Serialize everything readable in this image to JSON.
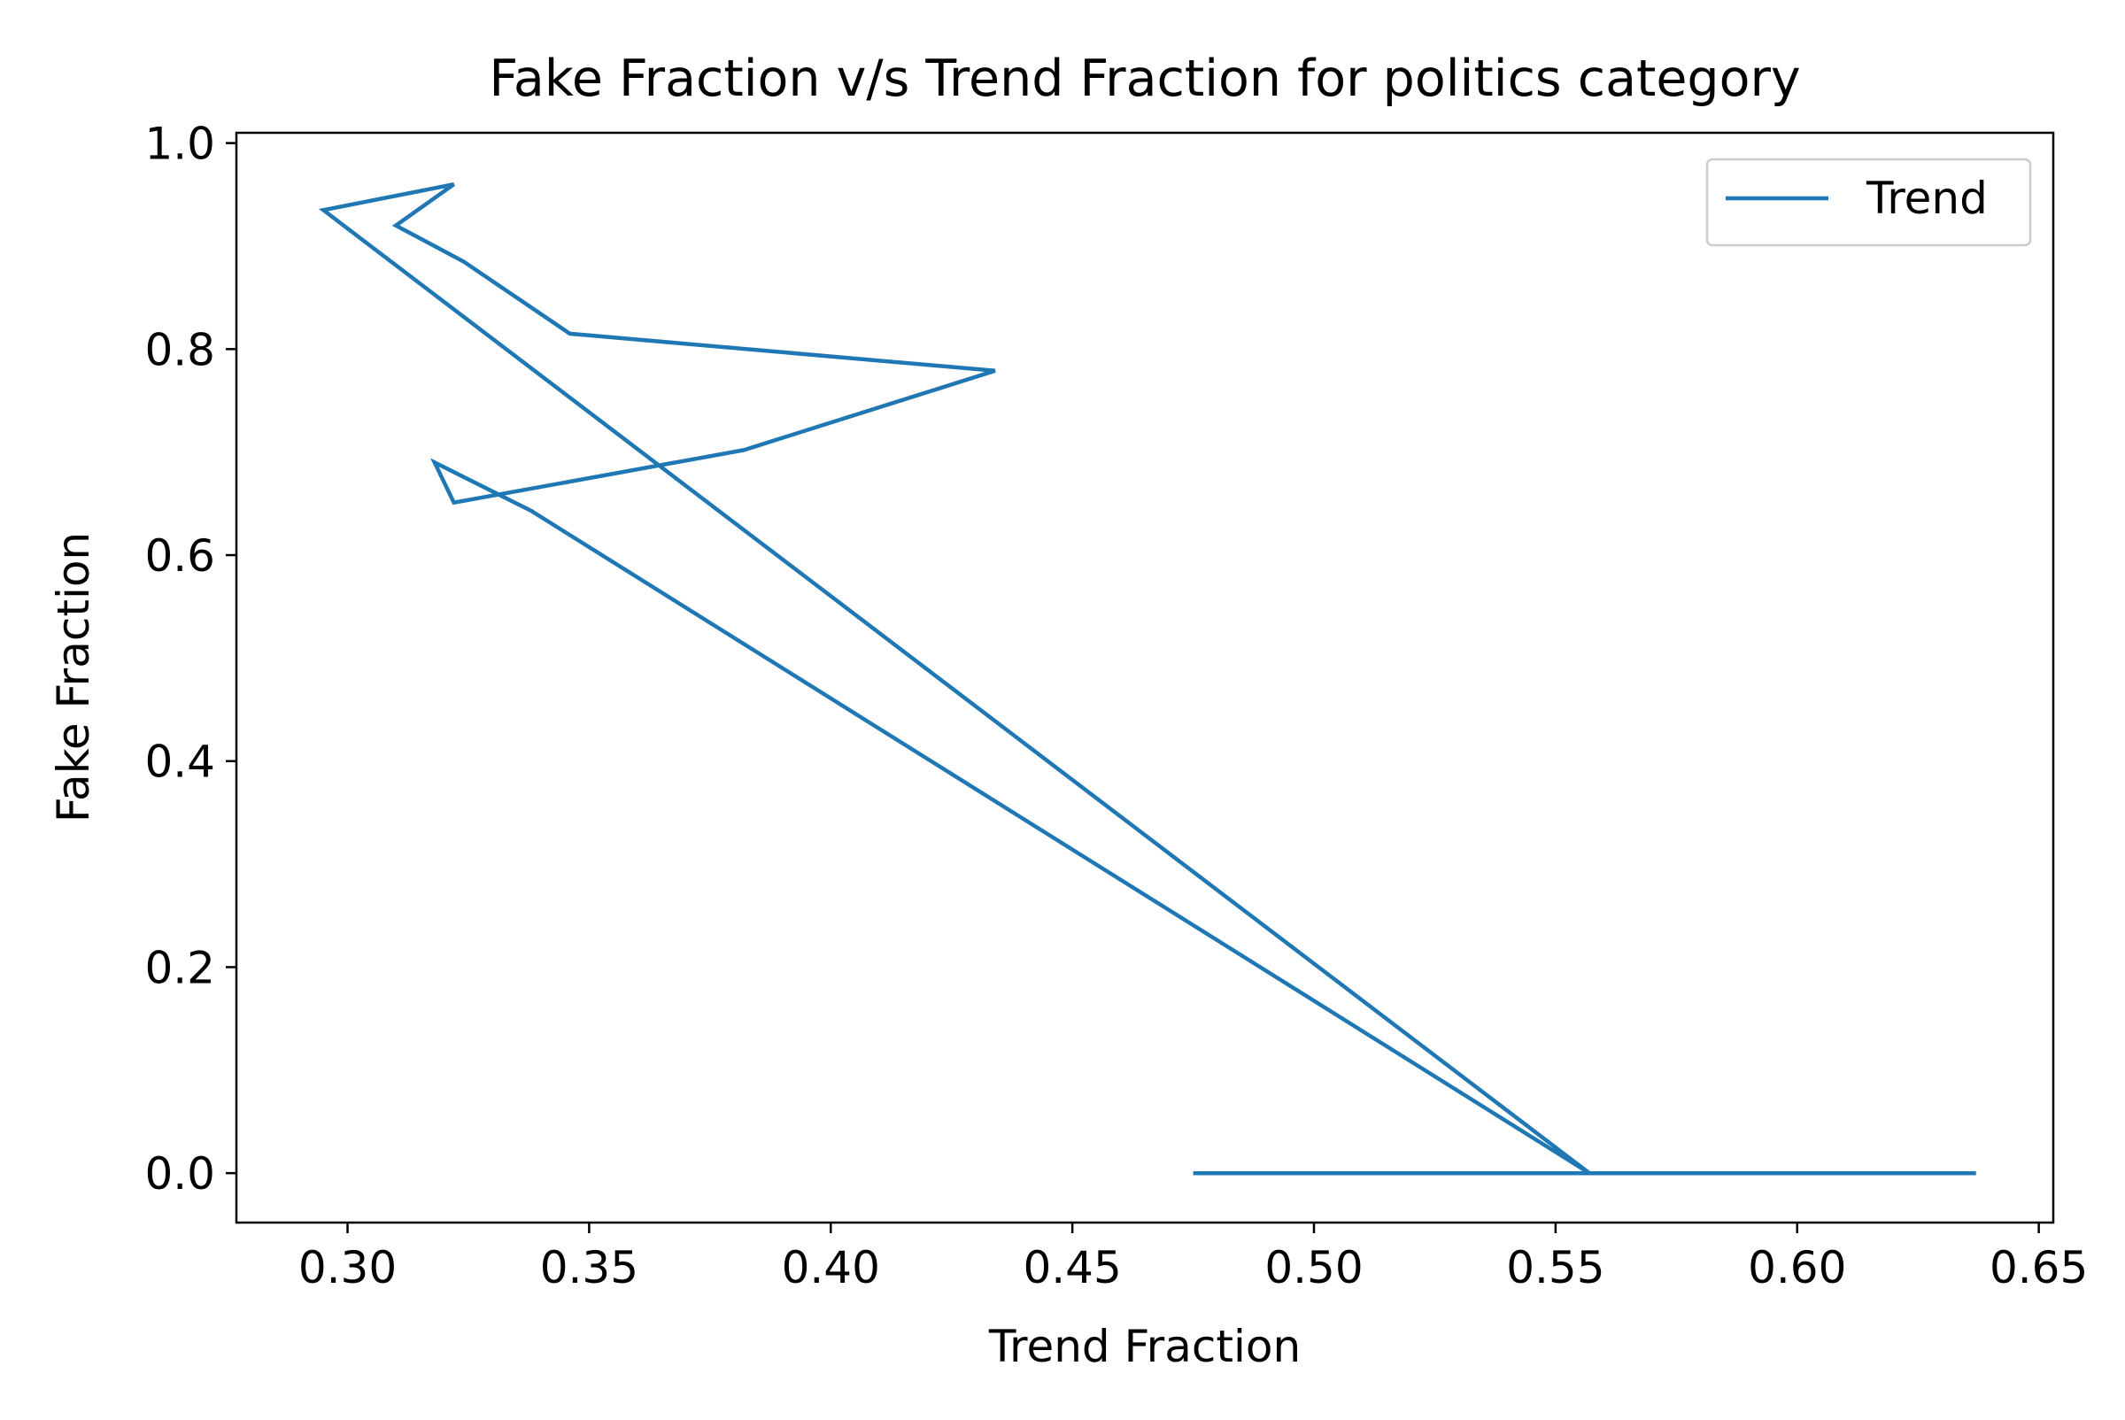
{
  "chart_data": {
    "type": "line",
    "title": "Fake Fraction v/s Trend Fraction for politics category",
    "xlabel": "Trend Fraction",
    "ylabel": "Fake Fraction",
    "xlim": [
      0.277,
      0.653
    ],
    "ylim": [
      -0.048,
      1.01
    ],
    "x_ticks": [
      {
        "value": 0.3,
        "label": "0.30"
      },
      {
        "value": 0.35,
        "label": "0.35"
      },
      {
        "value": 0.4,
        "label": "0.40"
      },
      {
        "value": 0.45,
        "label": "0.45"
      },
      {
        "value": 0.5,
        "label": "0.50"
      },
      {
        "value": 0.55,
        "label": "0.55"
      },
      {
        "value": 0.6,
        "label": "0.60"
      },
      {
        "value": 0.65,
        "label": "0.65"
      }
    ],
    "y_ticks": [
      {
        "value": 0.0,
        "label": "0.0"
      },
      {
        "value": 0.2,
        "label": "0.2"
      },
      {
        "value": 0.4,
        "label": "0.4"
      },
      {
        "value": 0.6,
        "label": "0.6"
      },
      {
        "value": 0.8,
        "label": "0.8"
      },
      {
        "value": 1.0,
        "label": "1.0"
      }
    ],
    "grid": false,
    "legend_position": "top-right",
    "series": [
      {
        "name": "Trend",
        "color": "#1f77b4",
        "points": [
          {
            "x": 0.475,
            "y": 0.0
          },
          {
            "x": 0.607,
            "y": 0.0
          },
          {
            "x": 0.637,
            "y": 0.0
          },
          {
            "x": 0.557,
            "y": 0.0
          },
          {
            "x": 0.295,
            "y": 0.935
          },
          {
            "x": 0.322,
            "y": 0.96
          },
          {
            "x": 0.31,
            "y": 0.92
          },
          {
            "x": 0.324,
            "y": 0.885
          },
          {
            "x": 0.346,
            "y": 0.815
          },
          {
            "x": 0.434,
            "y": 0.779
          },
          {
            "x": 0.382,
            "y": 0.702
          },
          {
            "x": 0.322,
            "y": 0.651
          },
          {
            "x": 0.318,
            "y": 0.69
          },
          {
            "x": 0.338,
            "y": 0.643
          },
          {
            "x": 0.557,
            "y": 0.0
          }
        ]
      }
    ]
  }
}
